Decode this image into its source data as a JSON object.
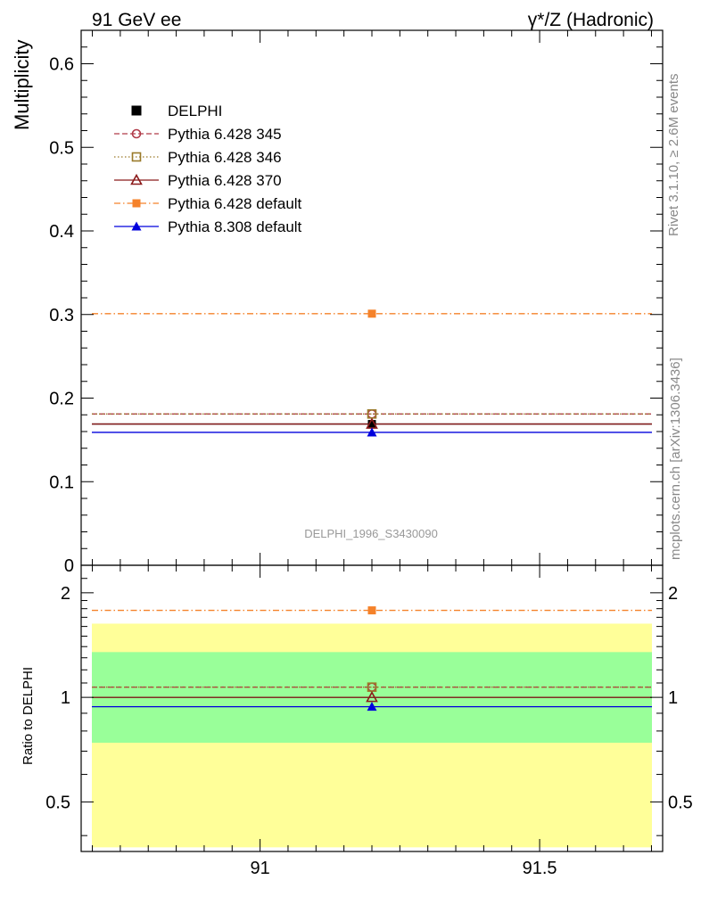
{
  "header": {
    "left_title": "91 GeV ee",
    "right_title": "γ*/Z (Hadronic)"
  },
  "side_notes": {
    "rivet": "Rivet 3.1.10, ≥ 2.6M events",
    "source": "mcplots.cern.ch [arXiv:1306.3436]"
  },
  "watermark": "DELPHI_1996_S3430090",
  "chart_data": [
    {
      "panel": "main",
      "type": "scatter",
      "ylabel": "Multiplicity",
      "xlim": [
        90.68,
        91.72
      ],
      "ylim": [
        0,
        0.64
      ],
      "yticks": [
        0,
        0.1,
        0.2,
        0.3,
        0.4,
        0.5,
        0.6
      ],
      "ytick_labels": [
        "0",
        "0.1",
        "0.2",
        "0.3",
        "0.4",
        "0.5",
        "0.6"
      ],
      "legend_position": "top-left",
      "series": [
        {
          "name": "DELPHI",
          "x": [
            91.2
          ],
          "y": [
            0.169
          ],
          "color": "#000000",
          "marker": "filled-square",
          "line": "none"
        },
        {
          "name": "Pythia 6.428 345",
          "x": [
            91.2
          ],
          "y": [
            0.181
          ],
          "color": "#b03a48",
          "marker": "open-circle",
          "line": "dashed"
        },
        {
          "name": "Pythia 6.428 346",
          "x": [
            91.2
          ],
          "y": [
            0.181
          ],
          "color": "#9a7a2a",
          "marker": "open-square",
          "line": "dotted"
        },
        {
          "name": "Pythia 6.428 370",
          "x": [
            91.2
          ],
          "y": [
            0.169
          ],
          "color": "#8b1a1a",
          "marker": "open-triangle",
          "line": "solid"
        },
        {
          "name": "Pythia 6.428 default",
          "x": [
            91.2
          ],
          "y": [
            0.301
          ],
          "color": "#f5822a",
          "marker": "filled-square",
          "line": "dashdot"
        },
        {
          "name": "Pythia 8.308 default",
          "x": [
            91.2
          ],
          "y": [
            0.159
          ],
          "color": "#0000dd",
          "marker": "filled-triangle",
          "line": "solid"
        }
      ]
    },
    {
      "panel": "ratio",
      "type": "scatter",
      "ylabel": "Ratio to DELPHI",
      "xlim": [
        90.68,
        91.72
      ],
      "ylim": [
        0.36,
        2.4
      ],
      "yticks": [
        0.5,
        1,
        2
      ],
      "ytick_labels": [
        "0.5",
        "1",
        "2"
      ],
      "xticks": [
        91,
        91.5
      ],
      "xtick_labels": [
        "91",
        "91.5"
      ],
      "bands": [
        {
          "kind": "outer",
          "low": 0.37,
          "high": 1.63,
          "color": "#ffff99"
        },
        {
          "kind": "inner",
          "low": 0.74,
          "high": 1.35,
          "color": "#99ff99"
        }
      ],
      "series": [
        {
          "name": "Pythia 6.428 345",
          "x": [
            91.2
          ],
          "y": [
            1.07
          ]
        },
        {
          "name": "Pythia 6.428 346",
          "x": [
            91.2
          ],
          "y": [
            1.07
          ]
        },
        {
          "name": "Pythia 6.428 370",
          "x": [
            91.2
          ],
          "y": [
            1.0
          ]
        },
        {
          "name": "Pythia 6.428 default",
          "x": [
            91.2
          ],
          "y": [
            1.78
          ]
        },
        {
          "name": "Pythia 8.308 default",
          "x": [
            91.2
          ],
          "y": [
            0.94
          ]
        }
      ]
    }
  ]
}
